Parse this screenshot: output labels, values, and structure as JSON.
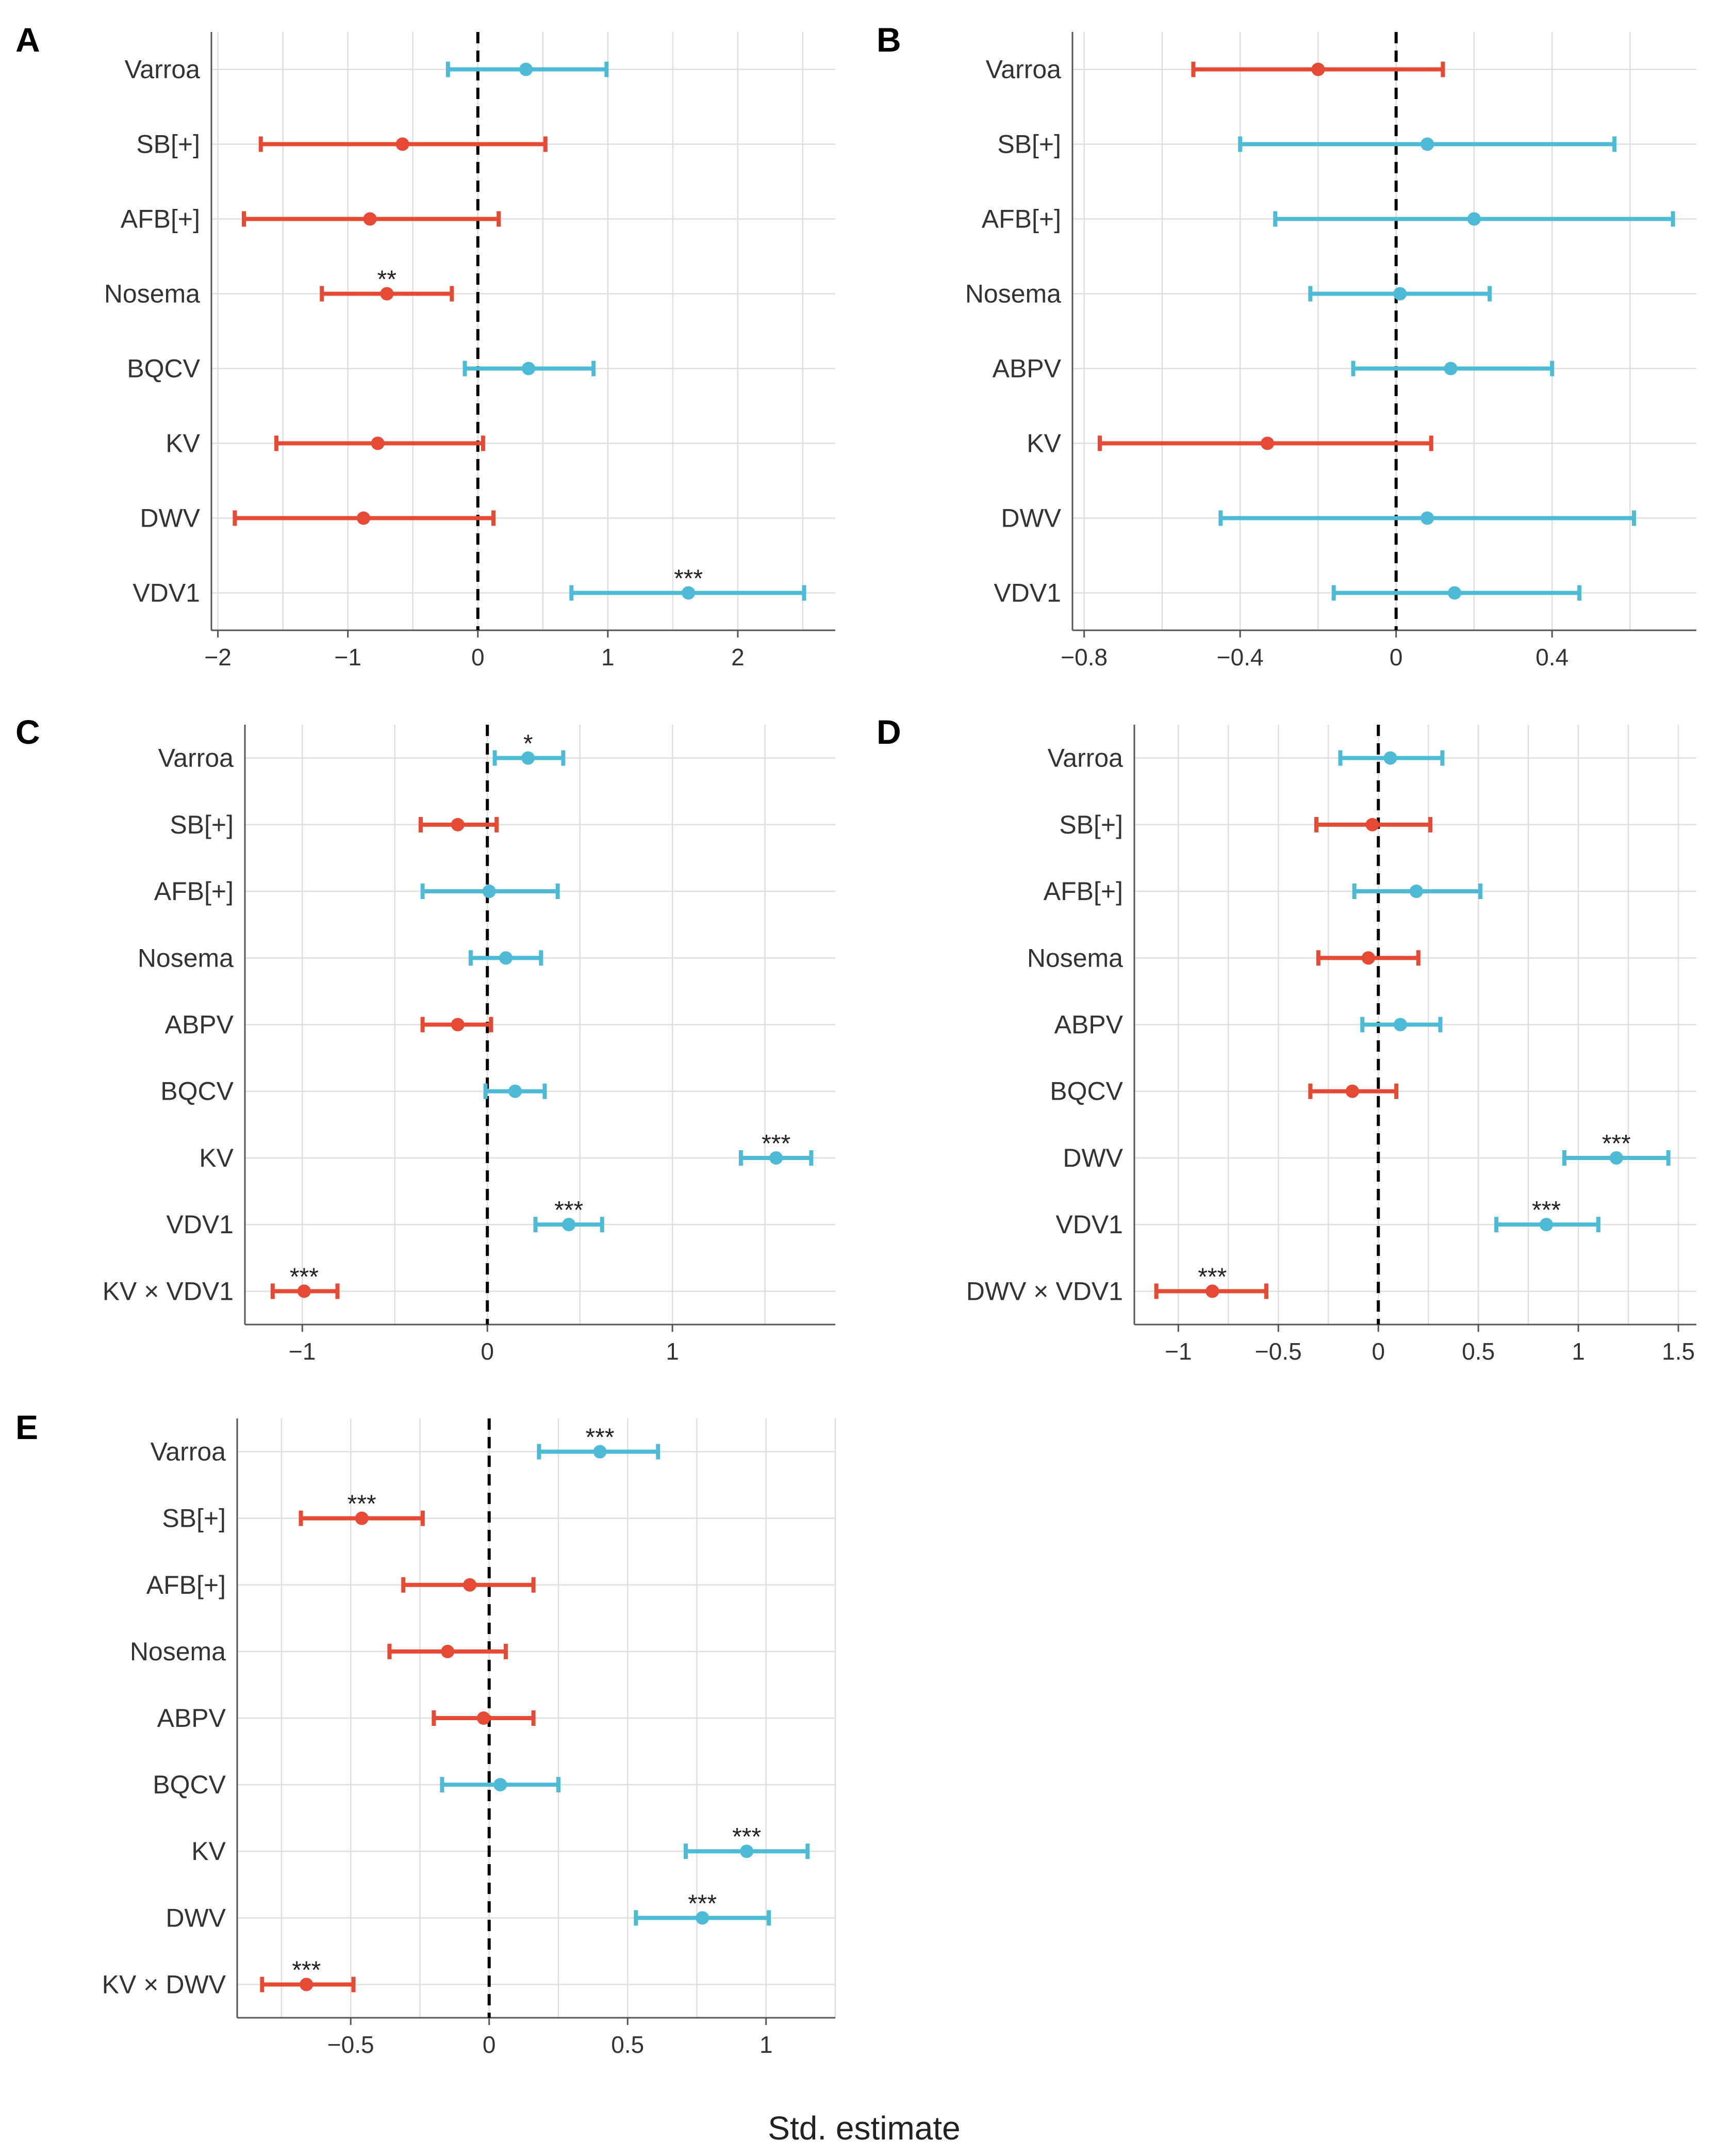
{
  "chart_data": [
    {
      "type": "forest",
      "panel": "A",
      "rows": [
        "Varroa",
        "SB[+]",
        "AFB[+]",
        "Nosema",
        "BQCV",
        "KV",
        "DWV",
        "VDV1"
      ],
      "estimate": [
        0.37,
        -0.58,
        -0.83,
        -0.7,
        0.39,
        -0.77,
        -0.88,
        1.62
      ],
      "ci_low": [
        -0.23,
        -1.67,
        -1.8,
        -1.2,
        -0.1,
        -1.55,
        -1.87,
        0.72
      ],
      "ci_high": [
        0.99,
        0.52,
        0.16,
        -0.2,
        0.89,
        0.04,
        0.12,
        2.51
      ],
      "significance": [
        "",
        "",
        "",
        "**",
        "",
        "",
        "",
        "***"
      ],
      "xticks": [
        -2,
        -1,
        0,
        1,
        2
      ],
      "xtick_labels": [
        "−2",
        "−1",
        "0",
        "1",
        "2"
      ],
      "xlim": [
        -2.05,
        2.75
      ]
    },
    {
      "type": "forest",
      "panel": "B",
      "rows": [
        "Varroa",
        "SB[+]",
        "AFB[+]",
        "Nosema",
        "ABPV",
        "KV",
        "DWV",
        "VDV1"
      ],
      "estimate": [
        -0.2,
        0.08,
        0.2,
        0.01,
        0.14,
        -0.33,
        0.08,
        0.15
      ],
      "ci_low": [
        -0.52,
        -0.4,
        -0.31,
        -0.22,
        -0.11,
        -0.76,
        -0.45,
        -0.16
      ],
      "ci_high": [
        0.12,
        0.56,
        0.71,
        0.24,
        0.4,
        0.09,
        0.61,
        0.47
      ],
      "significance": [
        "",
        "",
        "",
        "",
        "",
        "",
        "",
        ""
      ],
      "xticks": [
        -0.8,
        -0.4,
        0,
        0.4
      ],
      "xtick_labels": [
        "−0.8",
        "−0.4",
        "0",
        "0.4"
      ],
      "xlim": [
        -0.83,
        0.77
      ]
    },
    {
      "type": "forest",
      "panel": "C",
      "rows": [
        "Varroa",
        "SB[+]",
        "AFB[+]",
        "Nosema",
        "ABPV",
        "BQCV",
        "KV",
        "VDV1",
        "KV × VDV1"
      ],
      "estimate": [
        0.22,
        -0.16,
        0.01,
        0.1,
        -0.16,
        0.15,
        1.56,
        0.44,
        -0.99
      ],
      "ci_low": [
        0.04,
        -0.36,
        -0.35,
        -0.09,
        -0.35,
        -0.01,
        1.37,
        0.26,
        -1.16
      ],
      "ci_high": [
        0.41,
        0.05,
        0.38,
        0.29,
        0.02,
        0.31,
        1.75,
        0.62,
        -0.81
      ],
      "significance": [
        "*",
        "",
        "",
        "",
        "",
        "",
        "***",
        "***",
        "***"
      ],
      "xticks": [
        -1,
        0,
        1
      ],
      "xtick_labels": [
        "−1",
        "0",
        "1"
      ],
      "xlim": [
        -1.31,
        1.88
      ]
    },
    {
      "type": "forest",
      "panel": "D",
      "rows": [
        "Varroa",
        "SB[+]",
        "AFB[+]",
        "Nosema",
        "ABPV",
        "BQCV",
        "DWV",
        "VDV1",
        "DWV × VDV1"
      ],
      "estimate": [
        0.06,
        -0.03,
        0.19,
        -0.05,
        0.11,
        -0.13,
        1.19,
        0.84,
        -0.83
      ],
      "ci_low": [
        -0.19,
        -0.31,
        -0.12,
        -0.3,
        -0.08,
        -0.34,
        0.93,
        0.59,
        -1.11
      ],
      "ci_high": [
        0.32,
        0.26,
        0.51,
        0.2,
        0.31,
        0.09,
        1.45,
        1.1,
        -0.56
      ],
      "significance": [
        "",
        "",
        "",
        "",
        "",
        "",
        "***",
        "***",
        "***"
      ],
      "xticks": [
        -1,
        -0.5,
        0,
        0.5,
        1,
        1.5
      ],
      "xtick_labels": [
        "−1",
        "−0.5",
        "0",
        "0.5",
        "1",
        "1.5"
      ],
      "xlim": [
        -1.22,
        1.59
      ]
    },
    {
      "type": "forest",
      "panel": "E",
      "rows": [
        "Varroa",
        "SB[+]",
        "AFB[+]",
        "Nosema",
        "ABPV",
        "BQCV",
        "KV",
        "DWV",
        "KV × DWV"
      ],
      "estimate": [
        0.4,
        -0.46,
        -0.07,
        -0.15,
        -0.02,
        0.04,
        0.93,
        0.77,
        -0.66
      ],
      "ci_low": [
        0.18,
        -0.68,
        -0.31,
        -0.36,
        -0.2,
        -0.17,
        0.71,
        0.53,
        -0.82
      ],
      "ci_high": [
        0.61,
        -0.24,
        0.16,
        0.06,
        0.16,
        0.25,
        1.15,
        1.01,
        -0.49
      ],
      "significance": [
        "***",
        "***",
        "",
        "",
        "",
        "",
        "***",
        "***",
        "***"
      ],
      "xticks": [
        -0.5,
        0,
        0.5,
        1
      ],
      "xtick_labels": [
        "−0.5",
        "0",
        "0.5",
        "1"
      ],
      "xlim": [
        -0.91,
        1.25
      ]
    }
  ],
  "xlabel": "Std. estimate",
  "colors": {
    "negative": "#e64a35",
    "positive": "#4dbbd6",
    "zero_line": "#000000",
    "grid": "#dedede"
  }
}
